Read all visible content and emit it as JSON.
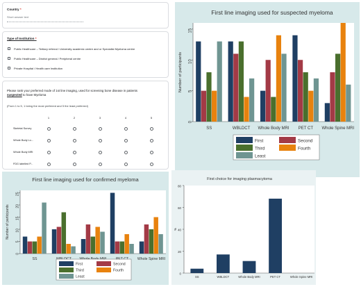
{
  "form": {
    "country": {
      "title": "Country",
      "required_mark": "*",
      "placeholder": "Short answer text"
    },
    "institution": {
      "title": "Type of Institution",
      "required_mark": "*",
      "options": [
        "Public Healthcare – Tertiary referral / University academic centre and or Specialist Myeloma centre",
        "Public Healthcare – District general / Peripheral centre",
        "Private Hospital / Health care Institution"
      ]
    },
    "ranking": {
      "question_line1": "Please rank your preferred mode of 1st line imaging, used for screening bone disease in patients",
      "question_word": "suspected",
      "question_line2_rest": " to have Myeloma",
      "instruction": "(From 1 to 5, 1 being the most preferred and 5 the least preferred)",
      "columns": [
        "1",
        "2",
        "3",
        "4",
        "5"
      ],
      "rows": [
        "Skeletal Survey",
        "Whole Body Lo...",
        "Whole Body MRI",
        "FDG labelled P..."
      ]
    }
  },
  "chart_data": [
    {
      "type": "bar",
      "title": "First line imaging used for suspected myeloma",
      "ylabel": "Number of participants",
      "ylim": [
        0,
        16
      ],
      "yticks": [
        "0",
        "5",
        "10",
        "15"
      ],
      "categories": [
        "SS",
        "WBLDCT",
        "Whole Body MRI",
        "PET CT",
        "Whole Spine MRI"
      ],
      "series": [
        {
          "name": "First",
          "color": "#1f3f63",
          "values": [
            13,
            13,
            5,
            14,
            3
          ]
        },
        {
          "name": "Second",
          "color": "#a33a46",
          "values": [
            5,
            11,
            10,
            10,
            8
          ]
        },
        {
          "name": "Third",
          "color": "#4a6f2d",
          "values": [
            8,
            13,
            4,
            8,
            11
          ]
        },
        {
          "name": "Fourth",
          "color": "#e8820e",
          "values": [
            5,
            4,
            14,
            5,
            16
          ]
        },
        {
          "name": "Least",
          "color": "#6f9592",
          "values": [
            13,
            7,
            11,
            7,
            6
          ]
        }
      ],
      "legend_position": "bottom"
    },
    {
      "type": "bar",
      "title": "First line imaging used for confirmed myeloma",
      "ylabel": "Number of participants",
      "ylim": [
        0,
        26
      ],
      "yticks": [
        "0",
        "5",
        "10",
        "15",
        "20",
        "25"
      ],
      "categories": [
        "SS",
        "WBLDCT",
        "Whole Body MRI",
        "PET CT",
        "Whole Spine MRI"
      ],
      "series": [
        {
          "name": "First",
          "color": "#1f3f63",
          "values": [
            7,
            10,
            6,
            25,
            5
          ]
        },
        {
          "name": "Second",
          "color": "#a33a46",
          "values": [
            5,
            11,
            12,
            5,
            12
          ]
        },
        {
          "name": "Third",
          "color": "#4a6f2d",
          "values": [
            5,
            17,
            7,
            5,
            10
          ]
        },
        {
          "name": "Fourth",
          "color": "#e8820e",
          "values": [
            7,
            4,
            11,
            8,
            15
          ]
        },
        {
          "name": "Least",
          "color": "#6f9592",
          "values": [
            21,
            3,
            9,
            4,
            8
          ]
        }
      ],
      "legend_position": "bottom"
    },
    {
      "type": "bar",
      "title": "First choice for imaging plasmacytoma",
      "ylabel": "%",
      "ylim": [
        0,
        80
      ],
      "yticks": [
        "0",
        "20",
        "40",
        "60",
        "80"
      ],
      "categories": [
        "SS",
        "WBLDCT",
        "Whole Body MRI",
        "PET CT",
        "Whole Spine MRI"
      ],
      "values": [
        4,
        17,
        11,
        68,
        0
      ],
      "color": "#1f3f63"
    }
  ]
}
